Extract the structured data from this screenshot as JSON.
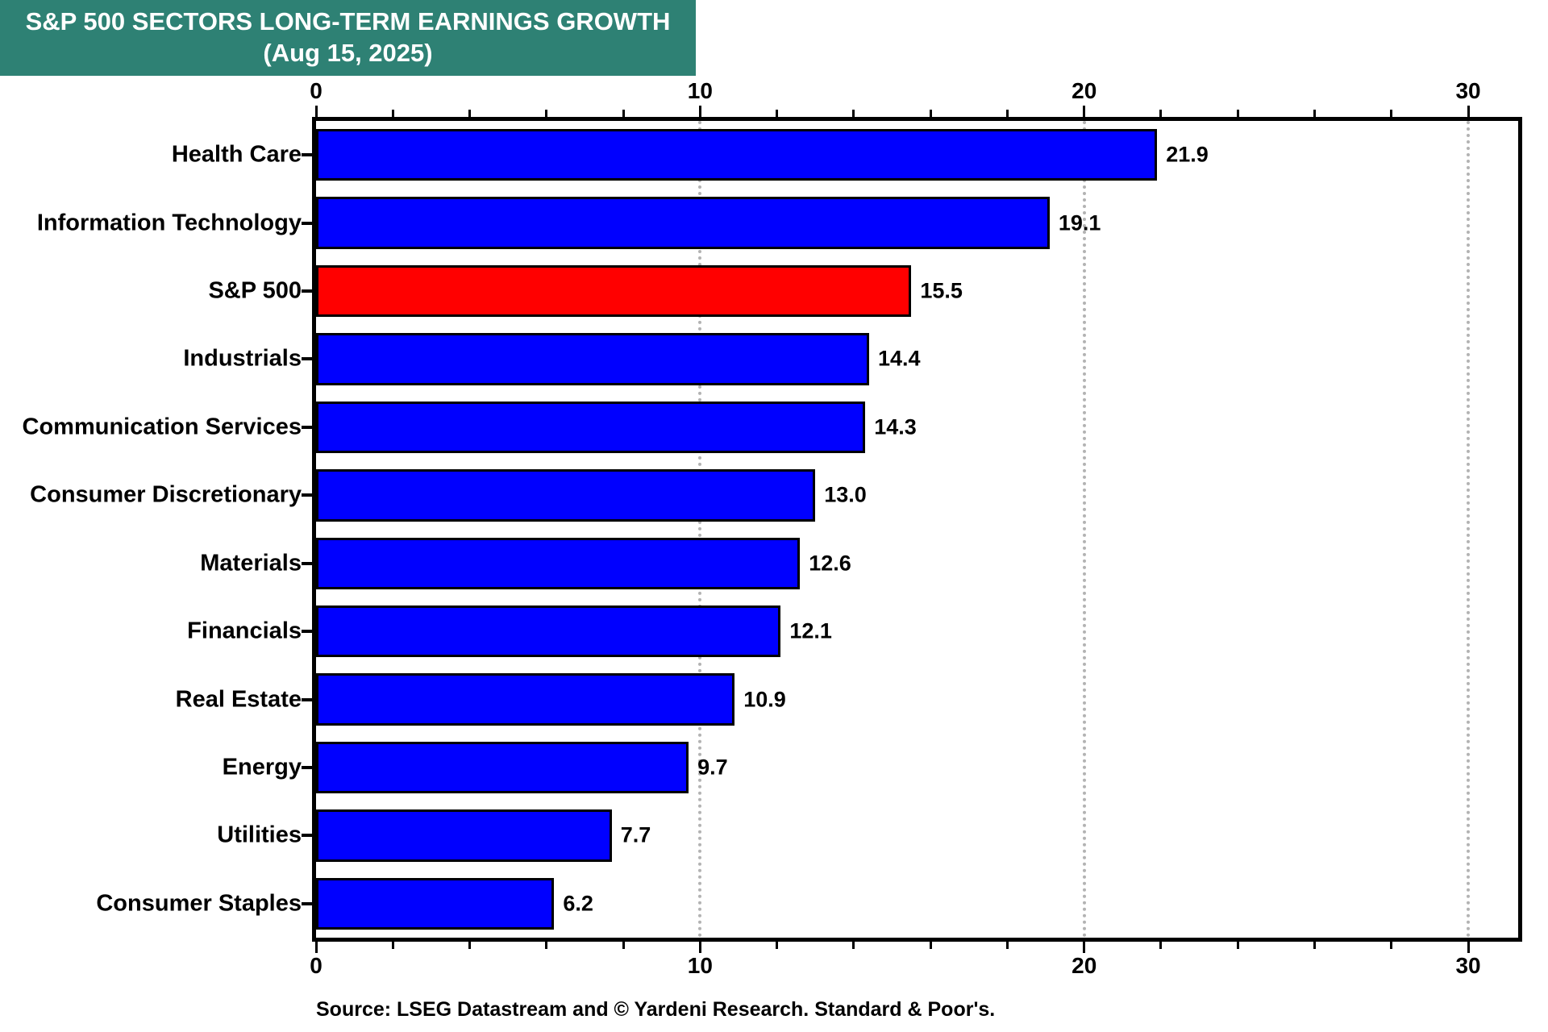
{
  "title": {
    "line1": "S&P 500 SECTORS LONG-TERM EARNINGS GROWTH",
    "line2": "(Aug 15, 2025)"
  },
  "source": "Source: LSEG Datastream and © Yardeni Research. Standard & Poor's.",
  "colors": {
    "title_bg": "#2E8174",
    "title_text": "#FFFFFF",
    "bar_default": "#0000FF",
    "bar_highlight": "#FF0000",
    "bar_border": "#000000",
    "axis": "#000000",
    "gridline": "#B3B3B3",
    "text": "#000000"
  },
  "chart_data": {
    "type": "bar",
    "orientation": "horizontal",
    "title": "S&P 500 SECTORS LONG-TERM EARNINGS GROWTH (Aug 15, 2025)",
    "categories": [
      "Health Care",
      "Information Technology",
      "S&P 500",
      "Industrials",
      "Communication Services",
      "Consumer Discretionary",
      "Materials",
      "Financials",
      "Real Estate",
      "Energy",
      "Utilities",
      "Consumer Staples"
    ],
    "values": [
      21.9,
      19.1,
      15.5,
      14.4,
      14.3,
      13.0,
      12.6,
      12.1,
      10.9,
      9.7,
      7.7,
      6.2
    ],
    "value_labels": [
      "21.9",
      "19.1",
      "15.5",
      "14.4",
      "14.3",
      "13.0",
      "12.6",
      "12.1",
      "10.9",
      "9.7",
      "7.7",
      "6.2"
    ],
    "highlight_index": 2,
    "xlim": [
      0,
      31.3
    ],
    "x_major_ticks": [
      0,
      10,
      20,
      30
    ],
    "x_tick_labels": [
      "0",
      "10",
      "20",
      "30"
    ],
    "x_minor_step": 2,
    "grid": "vertical dotted at 10, 20, 30",
    "legend": "none",
    "axis_ticks_position": "top and bottom"
  }
}
